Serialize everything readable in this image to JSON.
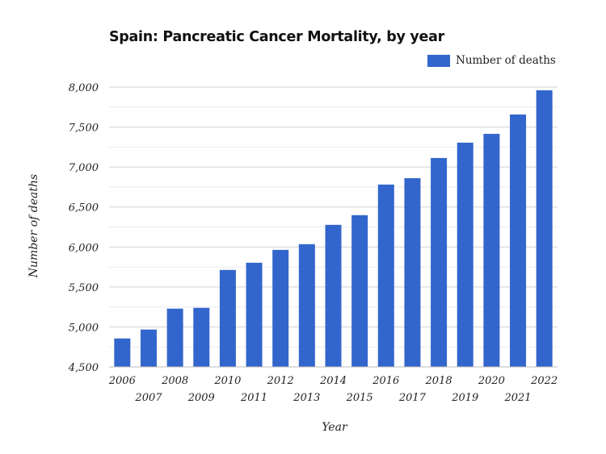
{
  "chart_data": {
    "type": "bar",
    "title": "Spain: Pancreatic Cancer Mortality, by year",
    "xlabel": "Year",
    "ylabel": "Number of deaths",
    "legend": {
      "entries": [
        "Number of deaths"
      ],
      "placement": "top-right"
    },
    "categories": [
      "2006",
      "2007",
      "2008",
      "2009",
      "2010",
      "2011",
      "2012",
      "2013",
      "2014",
      "2015",
      "2016",
      "2017",
      "2018",
      "2019",
      "2020",
      "2021",
      "2022"
    ],
    "series": [
      {
        "name": "Number of deaths",
        "color": "#3366cc",
        "values": [
          4856,
          4967,
          5229,
          5239,
          5713,
          5803,
          5964,
          6035,
          6277,
          6398,
          6781,
          6861,
          7113,
          7305,
          7415,
          7657,
          7960
        ]
      }
    ],
    "ylim": [
      4500,
      8000
    ],
    "yticks": [
      "4,500",
      "5,000",
      "5,500",
      "6,000",
      "6,500",
      "7,000",
      "7,500",
      "8,000"
    ],
    "ytick_values": [
      4500,
      5000,
      5500,
      6000,
      6500,
      7000,
      7500,
      8000
    ],
    "minor_grid_step": 250,
    "grid": true
  }
}
